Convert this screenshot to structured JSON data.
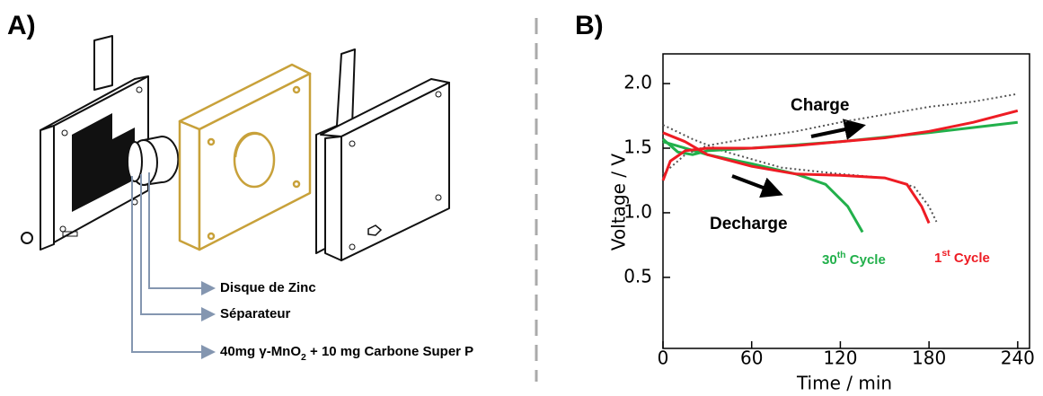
{
  "panel_a": {
    "label": "A)",
    "callouts": [
      {
        "parts": [
          "Disque de Zinc"
        ]
      },
      {
        "parts": [
          "Séparateur"
        ]
      },
      {
        "parts": [
          "40mg γ-MnO",
          "2",
          " + 10 mg Carbone Super P"
        ]
      }
    ]
  },
  "chart_data": {
    "type": "line",
    "panel_label": "B)",
    "xlabel": "Time / min",
    "ylabel": "Voltage / V",
    "xlim": [
      0,
      248
    ],
    "ylim": [
      -0.05,
      2.23
    ],
    "xticks": [
      0,
      60,
      120,
      180,
      240
    ],
    "yticks": [
      {
        "value": 0.5,
        "label": "0.5"
      },
      {
        "value": 1.0,
        "label": "1.0"
      },
      {
        "value": 1.5,
        "label": "1.5"
      },
      {
        "value": 2.0,
        "label": "2.0"
      }
    ],
    "annotations": [
      {
        "parts": [
          "Charge"
        ],
        "color": "#000000"
      },
      {
        "parts": [
          "Decharge"
        ],
        "color": "#000000"
      },
      {
        "parts": [
          "30",
          "th",
          " Cycle"
        ],
        "color": "#22b04b"
      },
      {
        "parts": [
          "1",
          "st",
          " Cycle"
        ],
        "color": "#ee1c24"
      }
    ],
    "series": [
      {
        "color": "#555555",
        "dash": true,
        "x": [
          0,
          15,
          30,
          60,
          90,
          120,
          150,
          180,
          210,
          240
        ],
        "values": [
          1.3,
          1.45,
          1.52,
          1.58,
          1.63,
          1.7,
          1.76,
          1.82,
          1.86,
          1.92
        ]
      },
      {
        "color": "#555555",
        "dash": true,
        "x": [
          0,
          20,
          40,
          80,
          120,
          150,
          170,
          180,
          185
        ],
        "values": [
          1.68,
          1.57,
          1.48,
          1.35,
          1.3,
          1.27,
          1.2,
          1.05,
          0.93
        ]
      },
      {
        "color": "#22b04b",
        "dash": false,
        "x": [
          0,
          10,
          20,
          30,
          60,
          120,
          180,
          210,
          240
        ],
        "values": [
          1.57,
          1.47,
          1.45,
          1.48,
          1.5,
          1.55,
          1.62,
          1.66,
          1.7
        ]
      },
      {
        "color": "#22b04b",
        "dash": false,
        "x": [
          0,
          30,
          60,
          90,
          110,
          125,
          135
        ],
        "values": [
          1.55,
          1.45,
          1.38,
          1.3,
          1.22,
          1.05,
          0.85
        ]
      },
      {
        "color": "#ee1c24",
        "dash": false,
        "x": [
          0,
          5,
          15,
          30,
          60,
          90,
          120,
          150,
          180,
          210,
          240
        ],
        "values": [
          1.25,
          1.4,
          1.48,
          1.5,
          1.5,
          1.52,
          1.55,
          1.58,
          1.63,
          1.7,
          1.79
        ]
      },
      {
        "color": "#ee1c24",
        "dash": false,
        "x": [
          0,
          15,
          30,
          60,
          90,
          120,
          150,
          165,
          175,
          180
        ],
        "values": [
          1.62,
          1.55,
          1.45,
          1.36,
          1.3,
          1.29,
          1.27,
          1.22,
          1.05,
          0.92
        ]
      }
    ]
  }
}
